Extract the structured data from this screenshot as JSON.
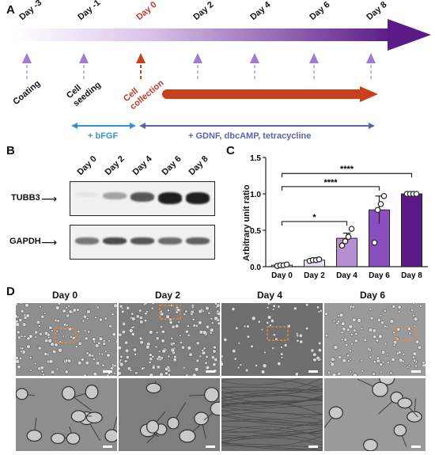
{
  "panelA": {
    "letter": "A",
    "days": [
      "Day -3",
      "Day -1",
      "Day 0",
      "Day 2",
      "Day 4",
      "Day 6",
      "Day 8"
    ],
    "events": [
      "Coating",
      "Cell\nseeding",
      "Cell\ncollection"
    ],
    "bfgf": "+ bFGF",
    "gdnf": "+ GDNF, dbcAMP, tetracycline",
    "colors": {
      "purple": "#5b1a86",
      "red": "#c9401e",
      "bfgf": "#3b8fd0",
      "gdnf": "#5a63b0",
      "day0": "#c0392b"
    }
  },
  "panelB": {
    "letter": "B",
    "lanes": [
      "Day 0",
      "Day 2",
      "Day 4",
      "Day 6",
      "Day 8"
    ],
    "rows": [
      {
        "label": "TUBB3",
        "intensity": [
          0.05,
          0.35,
          0.7,
          0.95,
          0.95
        ]
      },
      {
        "label": "GAPDH",
        "intensity": [
          0.55,
          0.75,
          0.7,
          0.6,
          0.65
        ]
      }
    ]
  },
  "panelC": {
    "letter": "C"
  },
  "chart_data": {
    "type": "bar",
    "categories": [
      "Day 0",
      "Day 2",
      "Day 4",
      "Day 6",
      "Day 8"
    ],
    "values": [
      0.02,
      0.09,
      0.39,
      0.78,
      1.0
    ],
    "errors": [
      0.01,
      0.01,
      0.07,
      0.19,
      0.0
    ],
    "points": [
      [
        0.01,
        0.02,
        0.02,
        0.03
      ],
      [
        0.08,
        0.09,
        0.09,
        0.1
      ],
      [
        0.29,
        0.35,
        0.41,
        0.52
      ],
      [
        0.33,
        0.78,
        0.86,
        0.97
      ],
      [
        1.0,
        1.0,
        1.0,
        1.0
      ]
    ],
    "colors": [
      "#f3eef8",
      "#e9e0f3",
      "#b68fd3",
      "#8a4fbf",
      "#5c1a86"
    ],
    "ylabel": "Arbitrary unit ratio",
    "ylim": [
      0,
      1.5
    ],
    "yticks": [
      "0.0",
      "0.5",
      "1.0",
      "1.5"
    ],
    "significance": [
      {
        "from": "Day 0",
        "to": "Day 4",
        "label": "*"
      },
      {
        "from": "Day 0",
        "to": "Day 6",
        "label": "****"
      },
      {
        "from": "Day 0",
        "to": "Day 8",
        "label": "****"
      }
    ]
  },
  "panelD": {
    "letter": "D",
    "titles": [
      "Day 0",
      "Day 2",
      "Day 4",
      "Day 6"
    ]
  }
}
